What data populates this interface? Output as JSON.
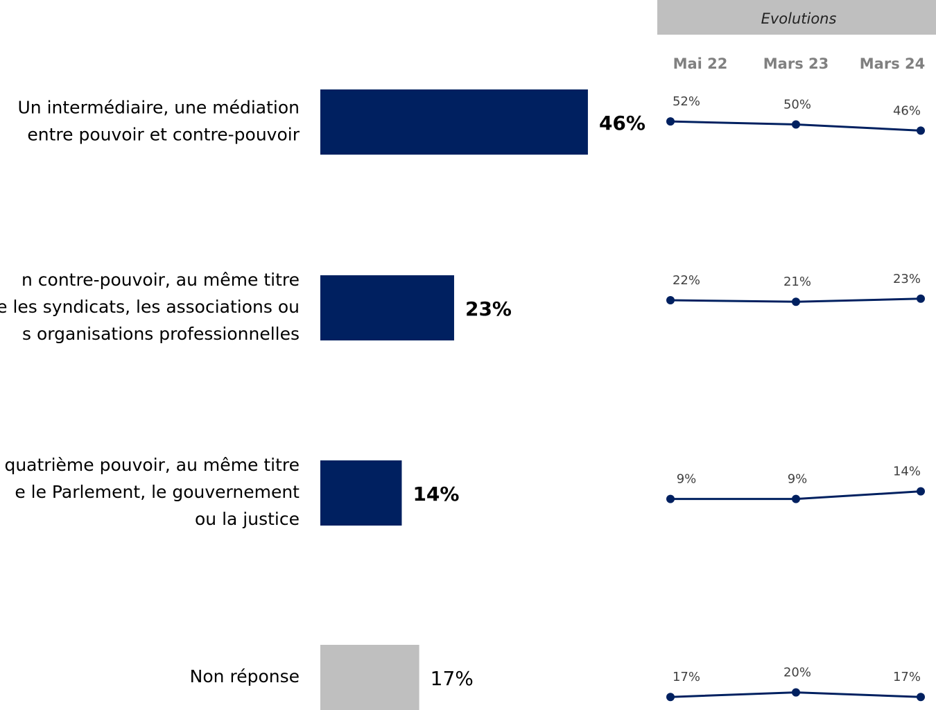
{
  "chart_data": {
    "type": "bar",
    "categories": [
      [
        "Un intermédiaire, une médiation",
        "entre pouvoir et contre-pouvoir"
      ],
      [
        "n contre-pouvoir, au même titre",
        "e les syndicats, les associations ou",
        "s organisations professionnelles"
      ],
      [
        "quatrième pouvoir, au même titre",
        "e le Parlement, le gouvernement",
        "ou la justice"
      ],
      [
        "Non réponse"
      ]
    ],
    "values": [
      46,
      23,
      14,
      17
    ],
    "value_labels": [
      "46%",
      "23%",
      "14%",
      "17%"
    ],
    "colors": [
      "#002060",
      "#002060",
      "#002060",
      "#bfbfbf"
    ],
    "evolutions": {
      "type": "line",
      "title": "Evolutions",
      "x": [
        "Mai 22",
        "Mars 23",
        "Mars 24"
      ],
      "color": "#002060",
      "series": [
        {
          "values": [
            52,
            50,
            46
          ],
          "value_labels": [
            "52%",
            "50%",
            "46%"
          ]
        },
        {
          "values": [
            22,
            21,
            23
          ],
          "value_labels": [
            "22%",
            "21%",
            "23%"
          ]
        },
        {
          "values": [
            9,
            9,
            14
          ],
          "value_labels": [
            "9%",
            "9%",
            "14%"
          ]
        },
        {
          "values": [
            17,
            20,
            17
          ],
          "value_labels": [
            "17%",
            "20%",
            "17%"
          ]
        }
      ]
    }
  }
}
